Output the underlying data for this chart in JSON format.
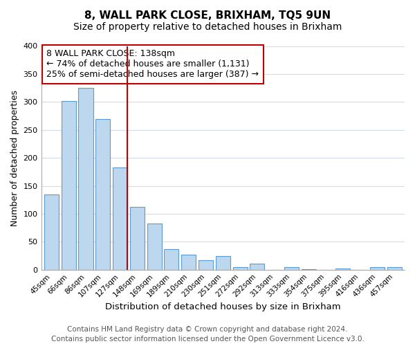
{
  "title": "8, WALL PARK CLOSE, BRIXHAM, TQ5 9UN",
  "subtitle": "Size of property relative to detached houses in Brixham",
  "xlabel": "Distribution of detached houses by size in Brixham",
  "ylabel": "Number of detached properties",
  "bar_labels": [
    "45sqm",
    "66sqm",
    "86sqm",
    "107sqm",
    "127sqm",
    "148sqm",
    "169sqm",
    "189sqm",
    "210sqm",
    "230sqm",
    "251sqm",
    "272sqm",
    "292sqm",
    "313sqm",
    "333sqm",
    "354sqm",
    "375sqm",
    "395sqm",
    "416sqm",
    "436sqm",
    "457sqm"
  ],
  "bar_values": [
    135,
    302,
    325,
    270,
    183,
    112,
    83,
    37,
    27,
    17,
    25,
    4,
    11,
    0,
    5,
    1,
    0,
    2,
    0,
    4,
    4
  ],
  "bar_color": "#bdd7ee",
  "bar_edge_color": "#5b9bd5",
  "vline_x": 4.425,
  "vline_color": "#c00000",
  "annotation_box_text": "8 WALL PARK CLOSE: 138sqm\n← 74% of detached houses are smaller (1,131)\n25% of semi-detached houses are larger (387) →",
  "annotation_fontsize": 9,
  "ylim": [
    0,
    400
  ],
  "yticks": [
    0,
    50,
    100,
    150,
    200,
    250,
    300,
    350,
    400
  ],
  "footer_line1": "Contains HM Land Registry data © Crown copyright and database right 2024.",
  "footer_line2": "Contains public sector information licensed under the Open Government Licence v3.0.",
  "title_fontsize": 11,
  "subtitle_fontsize": 10,
  "xlabel_fontsize": 9.5,
  "ylabel_fontsize": 9,
  "footer_fontsize": 7.5,
  "background_color": "#ffffff",
  "grid_color": "#d0dce8"
}
